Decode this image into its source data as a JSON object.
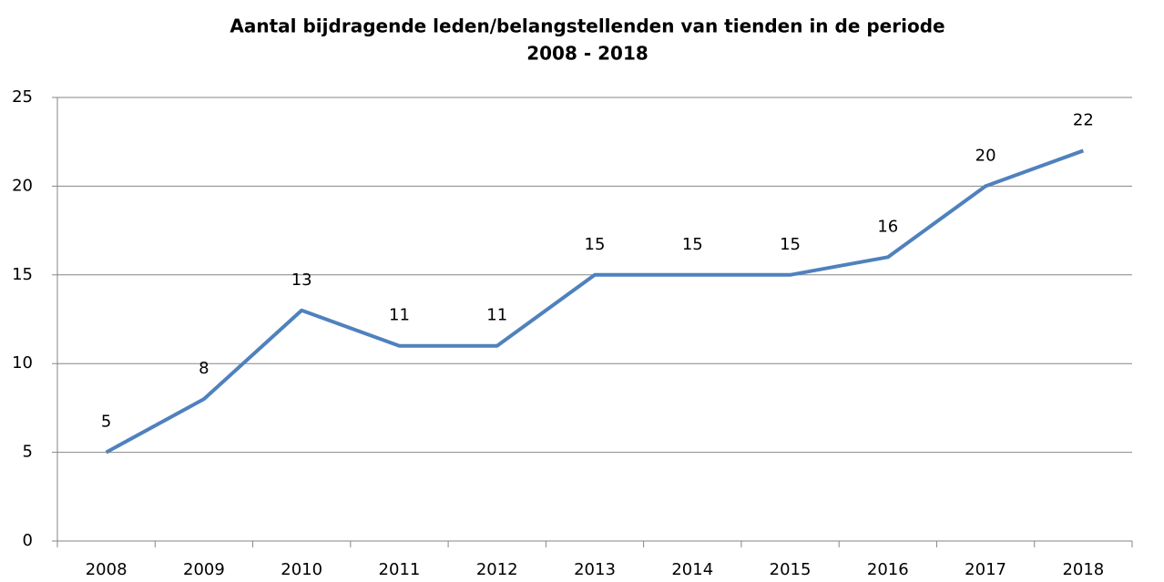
{
  "chart_data": {
    "type": "line",
    "title": [
      "Aantal bijdragende leden/belangstellenden van tienden in de periode",
      "2008 - 2018"
    ],
    "categories": [
      "2008",
      "2009",
      "2010",
      "2011",
      "2012",
      "2013",
      "2014",
      "2015",
      "2016",
      "2017",
      "2018"
    ],
    "values": [
      5,
      8,
      13,
      11,
      11,
      15,
      15,
      15,
      16,
      20,
      22
    ],
    "color": "#4f81bd",
    "ylim": [
      0,
      25
    ],
    "yticks": [
      0,
      5,
      10,
      15,
      20,
      25
    ],
    "grid": true,
    "data_labels": true
  }
}
